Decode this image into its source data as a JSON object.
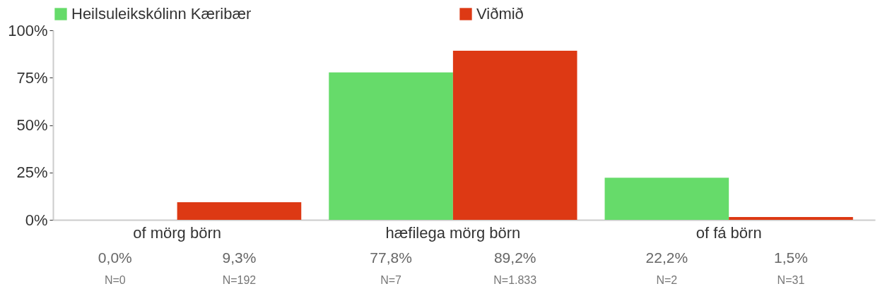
{
  "chart_data": {
    "type": "bar",
    "categories": [
      "of mörg börn",
      "hæfilega mörg börn",
      "of fá börn"
    ],
    "series": [
      {
        "name": "Heilsuleikskólinn Kæribær",
        "color": "#66db6a",
        "values": [
          0.0,
          77.8,
          22.2
        ],
        "value_labels": [
          "0,0%",
          "77,8%",
          "22,2%"
        ]
      },
      {
        "name": "Viðmið",
        "color": "#dd3914",
        "values": [
          9.3,
          89.2,
          1.5
        ],
        "value_labels": [
          "9,3%",
          "89,2%",
          "1,5%"
        ]
      }
    ],
    "ylim": [
      0,
      100
    ],
    "yticks": [
      {
        "value": 0,
        "label": "0%"
      },
      {
        "value": 25,
        "label": "25%"
      },
      {
        "value": 50,
        "label": "50%"
      },
      {
        "value": 75,
        "label": "75%"
      },
      {
        "value": 100,
        "label": "100%"
      }
    ],
    "grid": false,
    "legend": "top",
    "annotations": [
      "N=0",
      "N=192",
      "N=7",
      "N=1.833",
      "N=2",
      "N=31"
    ]
  }
}
